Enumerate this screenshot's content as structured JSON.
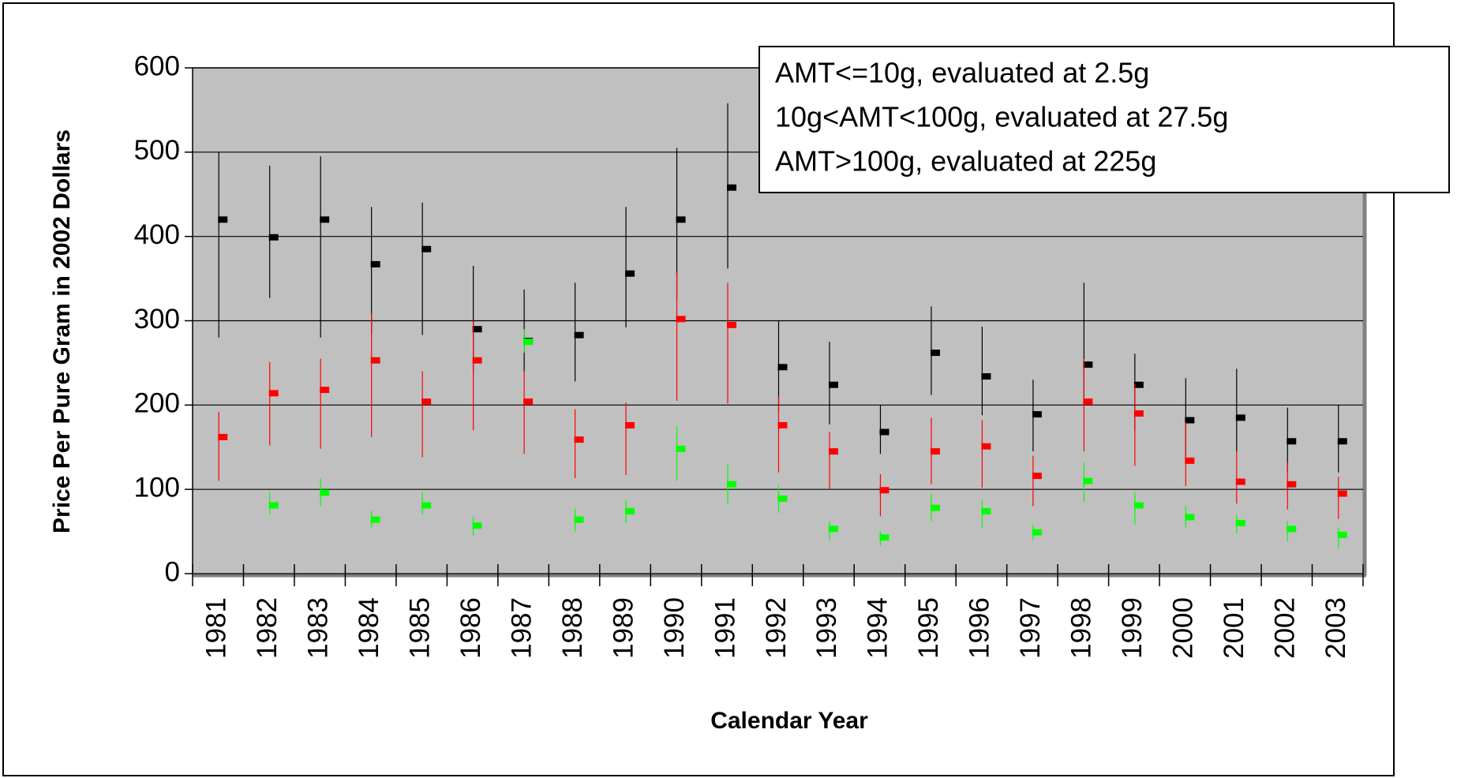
{
  "chart_data": {
    "type": "errorbar",
    "x_label": "Calendar Year",
    "y_label": "Price Per Pure Gram in 2002 Dollars",
    "categories": [
      "1981",
      "1982",
      "1983",
      "1984",
      "1985",
      "1986",
      "1987",
      "1988",
      "1989",
      "1990",
      "1991",
      "1992",
      "1993",
      "1994",
      "1995",
      "1996",
      "1997",
      "1998",
      "1999",
      "2000",
      "2001",
      "2002",
      "2003"
    ],
    "ylim": [
      0,
      600
    ],
    "yticks": [
      0,
      100,
      200,
      300,
      400,
      500,
      600
    ],
    "grid": true,
    "legend": "top-right",
    "series": [
      {
        "name": "AMT<=10g, evaluated at 2.5g",
        "color": "#000000",
        "legend_color": "#000000",
        "values": [
          420,
          399,
          420,
          367,
          385,
          290,
          276,
          283,
          356,
          420,
          458,
          245,
          224,
          168,
          262,
          234,
          189,
          248,
          224,
          182,
          185,
          157,
          157
        ],
        "lows": [
          280,
          327,
          280,
          285,
          283,
          237,
          240,
          228,
          292,
          325,
          362,
          192,
          177,
          142,
          212,
          188,
          145,
          200,
          170,
          137,
          145,
          120,
          120
        ],
        "highs": [
          500,
          484,
          495,
          435,
          440,
          365,
          337,
          345,
          435,
          505,
          558,
          300,
          275,
          200,
          317,
          293,
          230,
          345,
          261,
          232,
          243,
          197,
          200
        ]
      },
      {
        "name": "10g<AMT<100g, evaluated at 27.5g",
        "color": "#ff0000",
        "legend_color": "#ff0000",
        "values": [
          162,
          214,
          218,
          253,
          204,
          253,
          204,
          159,
          176,
          302,
          295,
          176,
          145,
          99,
          145,
          151,
          116,
          204,
          190,
          134,
          109,
          106,
          95
        ],
        "lows": [
          110,
          152,
          148,
          162,
          138,
          170,
          142,
          113,
          117,
          205,
          202,
          120,
          100,
          68,
          106,
          102,
          80,
          145,
          128,
          104,
          83,
          76,
          65
        ],
        "highs": [
          192,
          251,
          255,
          308,
          240,
          300,
          240,
          195,
          203,
          357,
          345,
          210,
          168,
          118,
          185,
          182,
          140,
          255,
          225,
          180,
          145,
          132,
          115
        ]
      },
      {
        "name": "AMT>100g, evaluated at 225g",
        "color": "#00ff00",
        "legend_color": "#00a000",
        "values": [
          null,
          81,
          96,
          64,
          81,
          57,
          275,
          64,
          74,
          148,
          106,
          89,
          53,
          43,
          78,
          74,
          49,
          110,
          81,
          67,
          60,
          53,
          46
        ],
        "lows": [
          null,
          70,
          80,
          55,
          70,
          45,
          262,
          50,
          60,
          110,
          82,
          72,
          40,
          33,
          62,
          55,
          40,
          85,
          58,
          55,
          48,
          38,
          30
        ],
        "highs": [
          null,
          97,
          113,
          75,
          97,
          68,
          290,
          77,
          88,
          175,
          130,
          105,
          62,
          50,
          95,
          88,
          58,
          132,
          97,
          80,
          70,
          62,
          55
        ]
      }
    ]
  }
}
